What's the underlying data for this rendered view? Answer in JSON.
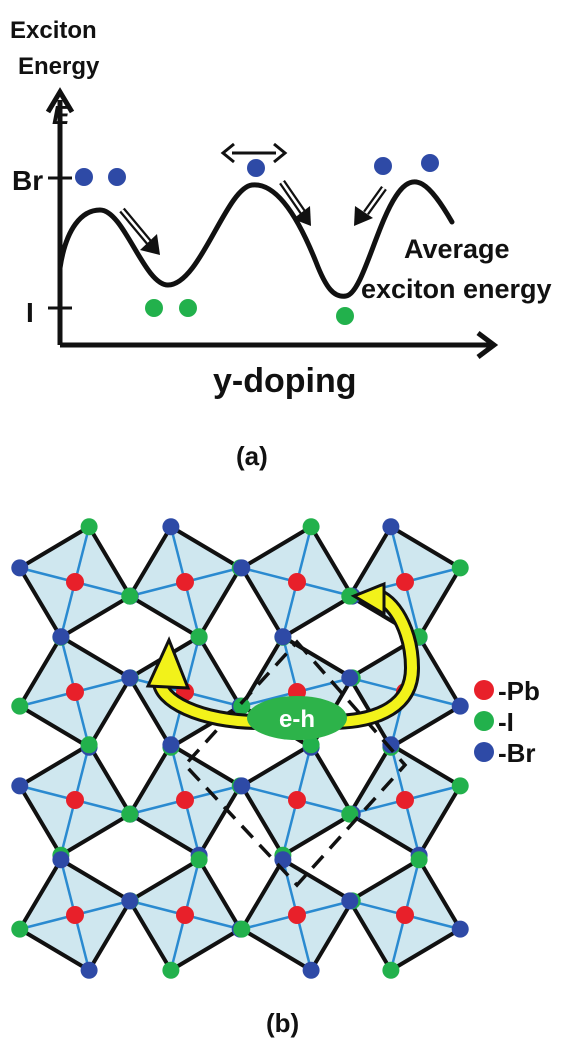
{
  "panel_a": {
    "title_line1": "Exciton",
    "title_line2": "Energy",
    "axis_symbol": "E",
    "tick_br": "Br",
    "tick_i": "I",
    "xlabel": "y-doping",
    "annotation_line1": "Average",
    "annotation_line2": "exciton energy",
    "caption": "(a)"
  },
  "panel_b": {
    "center_label": "e-h",
    "legend": [
      {
        "symbol": "red-circle",
        "label": "-Pb",
        "color": "#e8202a"
      },
      {
        "symbol": "green-circle",
        "label": "-I",
        "color": "#22b14c"
      },
      {
        "symbol": "blue-circle",
        "label": "-Br",
        "color": "#2e4aa6"
      }
    ],
    "caption": "(b)"
  },
  "colors": {
    "octahedron_fill": "#cfe7ef",
    "bond_blue": "#2a8ad0",
    "arrow_yellow": "#f2f21a",
    "eh_green": "#2db34a"
  }
}
